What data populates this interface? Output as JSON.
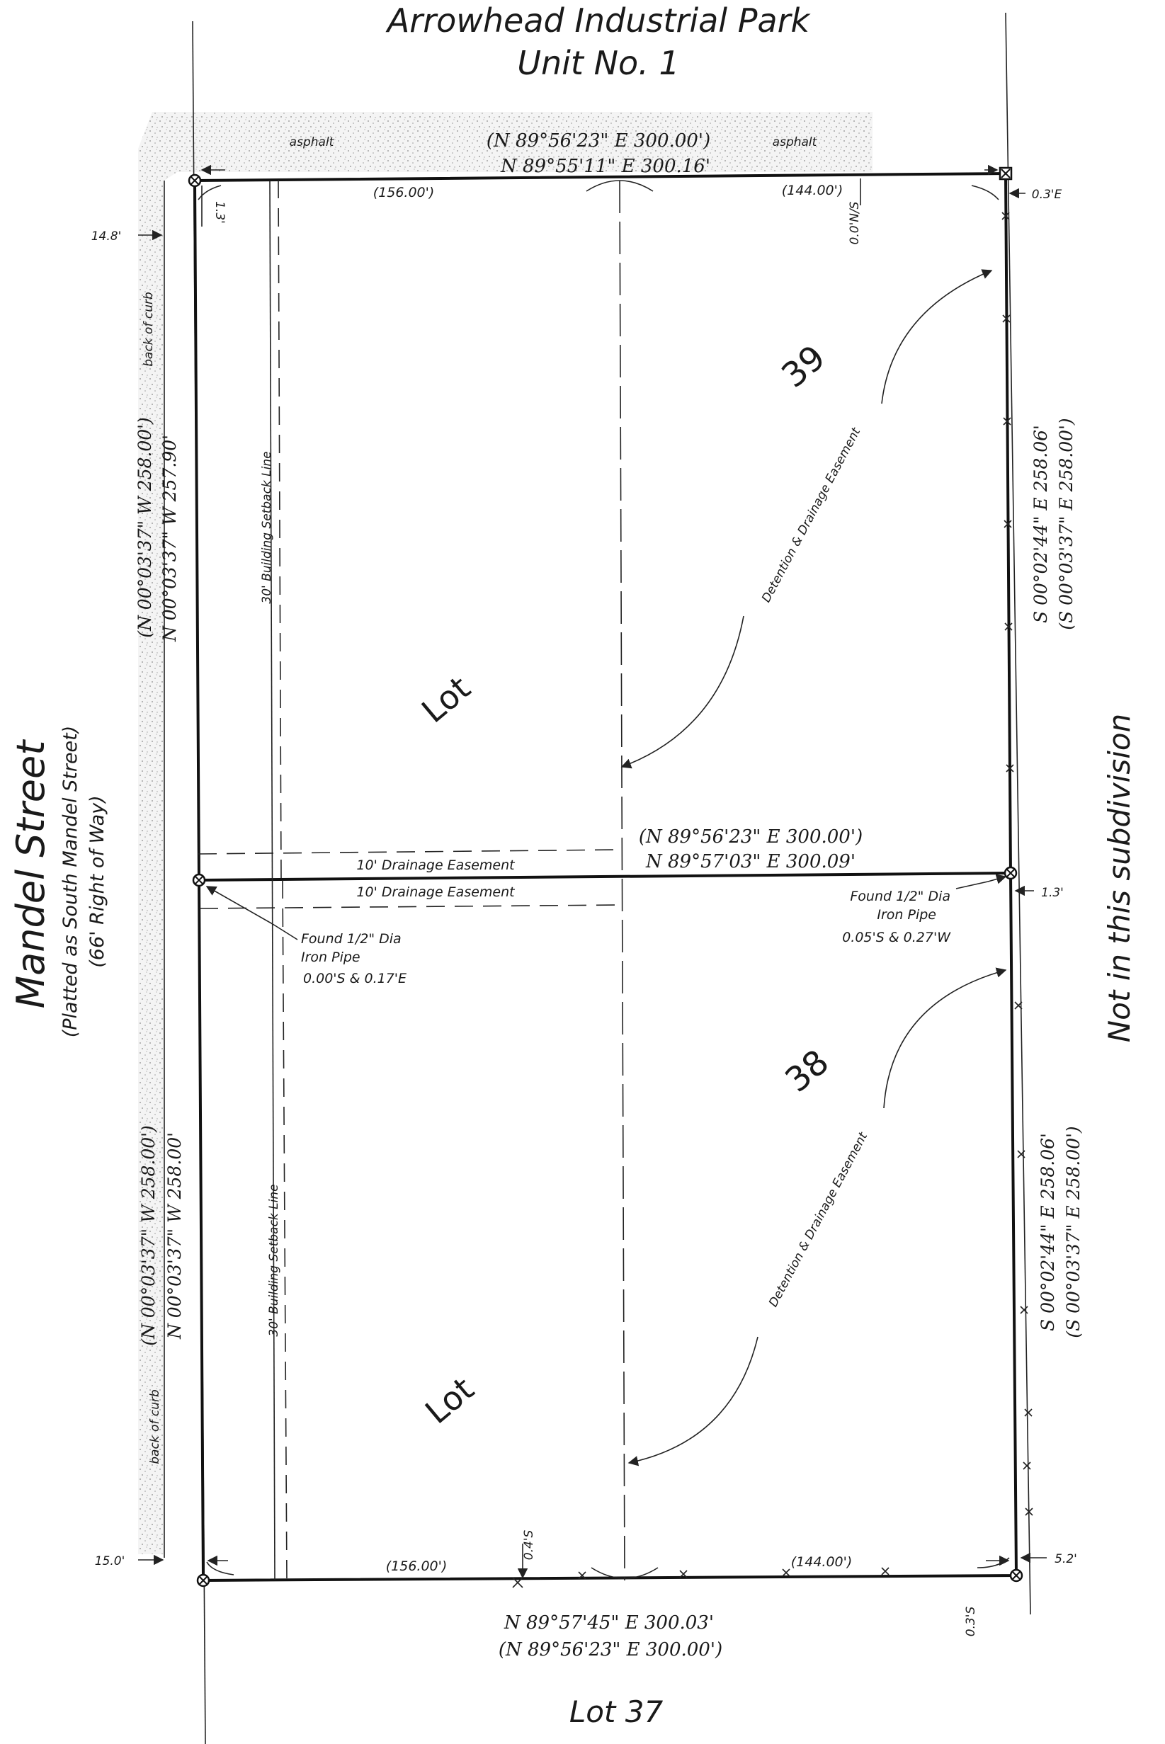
{
  "title": {
    "line1": "Arrowhead Industrial Park",
    "line2": "Unit No. 1"
  },
  "street": {
    "name": "Mandel Street",
    "platted": "(Platted as South Mandel Street)",
    "row": "(66' Right of Way)"
  },
  "neighbors": {
    "east": "Not in this subdivision",
    "south": "Lot 37"
  },
  "surface": {
    "asphalt_left": "asphalt",
    "asphalt_right": "asphalt",
    "back_of_curb_top": "back of curb",
    "back_of_curb_bottom": "back of curb"
  },
  "offsets": {
    "curb_top": "14.8'",
    "curb_bottom": "15.0'",
    "nw_corner": "1.3'",
    "ne_corner": "0.3'E",
    "ne_ns": "0.0'N/S",
    "mid_east": "1.3'",
    "se_corner": "5.2'",
    "se_south": "0.3'S",
    "bottom_mid": "0.4'S"
  },
  "bearings": {
    "north_record": "(N 89°56'23\"  E    300.00')",
    "north_measured": "N  89°55'11\"  E    300.16'",
    "north_seg_left": "(156.00')",
    "north_seg_right": "(144.00')",
    "middle_record": "(N  89°56'23\"  E    300.00')",
    "middle_measured": "N  89°57'03\"  E    300.09'",
    "south_measured": "N  89°57'45\"  E    300.03'",
    "south_record": "(N  89°56'23\"  E    300.00')",
    "south_seg_left": "(156.00')",
    "south_seg_right": "(144.00')",
    "west39_record": "(N  00°03'37\"  W    258.00')",
    "west39_measured": "N  00°03'37\"  W    257.90'",
    "west38_record": "(N  00°03'37\"  W    258.00')",
    "west38_measured": "N  00°03'37\"  W    258.00'",
    "east39_measured": "S  00°02'44\"  E    258.06'",
    "east39_record": "(S  00°03'37\"  E    258.00')",
    "east38_measured": "S  00°02'44\"  E    258.06'",
    "east38_record": "(S  00°03'37\"  E    258.00')"
  },
  "lots": {
    "lot39_word": "Lot",
    "lot39_num": "39",
    "lot38_word": "Lot",
    "lot38_num": "38"
  },
  "easements": {
    "drain_upper": "10' Drainage Easement",
    "drain_lower": "10' Drainage Easement",
    "detention_upper": "Detention & Drainage Easement",
    "detention_lower": "Detention & Drainage Easement",
    "setback_upper": "30' Building Setback Line",
    "setback_lower": "30' Building Setback Line"
  },
  "monuments": {
    "west": {
      "line1": "Found 1/2\" Dia",
      "line2": "Iron Pipe",
      "line3": "0.00'S & 0.17'E"
    },
    "east": {
      "line1": "Found 1/2\" Dia",
      "line2": "Iron Pipe",
      "line3": "0.05'S & 0.27'W"
    }
  }
}
